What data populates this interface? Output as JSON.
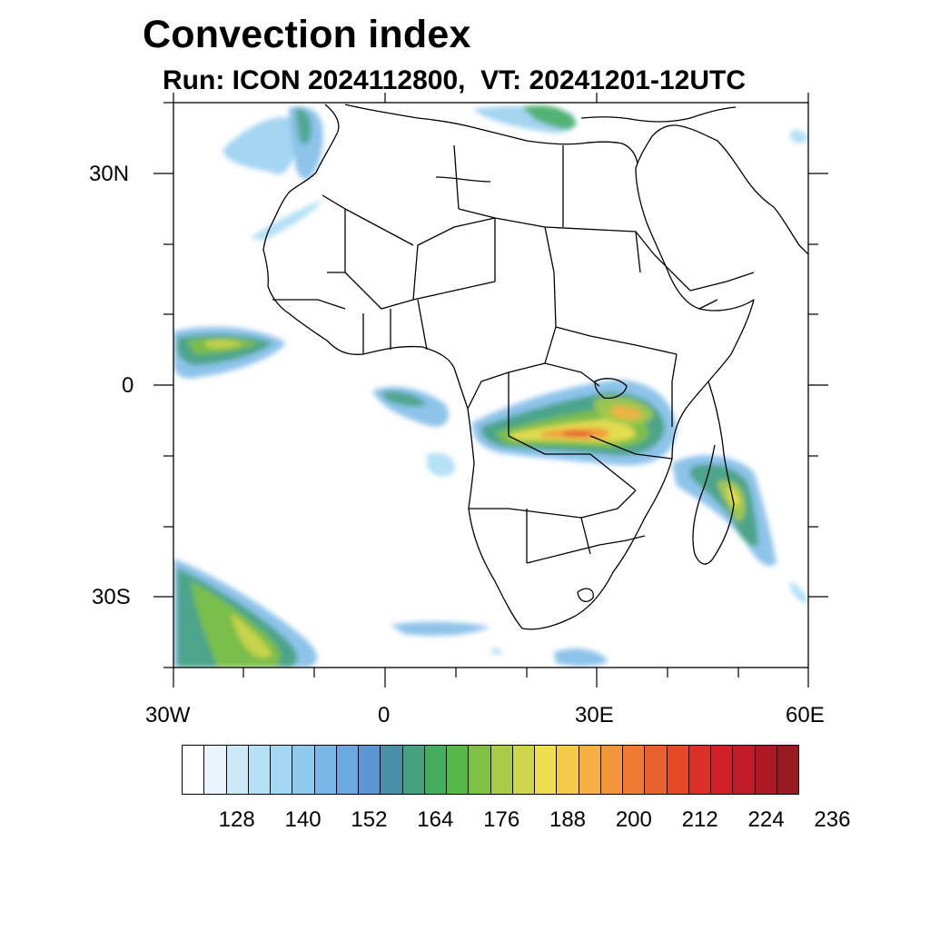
{
  "title": "Convection index",
  "subtitle": "Run: ICON 2024112800,  VT: 20241201-12UTC",
  "axes": {
    "lon_labels": [
      "30W",
      "0",
      "30E",
      "60E"
    ],
    "lat_labels": [
      "30N",
      "0",
      "30S"
    ],
    "lon_range": [
      -30,
      60
    ],
    "lat_range": [
      -40,
      40
    ]
  },
  "colorbar": {
    "colors": [
      "#ffffff",
      "#e8f5fc",
      "#cde9f8",
      "#b6e0f6",
      "#a2d8f4",
      "#8dcaee",
      "#79b8e6",
      "#6aa8de",
      "#5a97d2",
      "#4a8fa8",
      "#45a281",
      "#44ad5f",
      "#56b848",
      "#7fc145",
      "#a9cb48",
      "#cfd54b",
      "#eedf50",
      "#f7c94b",
      "#f5b043",
      "#f3963a",
      "#ef7a32",
      "#e8602c",
      "#e24a28",
      "#db3028",
      "#d12028",
      "#c11a28",
      "#ad1a26",
      "#9a1a22"
    ],
    "tick_labels": [
      "128",
      "140",
      "152",
      "164",
      "176",
      "188",
      "200",
      "212",
      "224",
      "236"
    ]
  }
}
